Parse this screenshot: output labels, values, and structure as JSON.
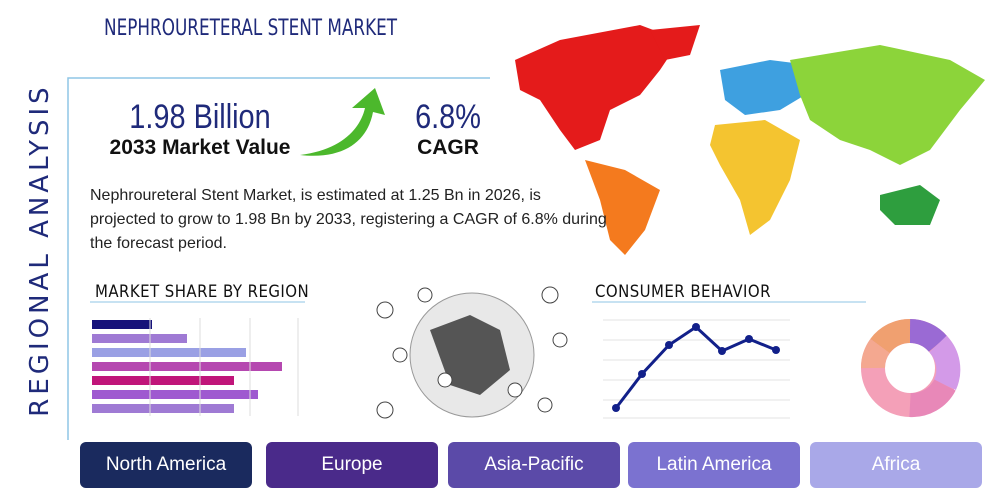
{
  "side_label": "REGIONAL ANALYSIS",
  "header": {
    "title": "NEPHROURETERAL STENT MARKET"
  },
  "stats": {
    "market_value": "1.98 Billion",
    "market_value_label": "2033 Market Value",
    "cagr": "6.8%",
    "cagr_label": "CAGR"
  },
  "description": "Nephroureteral Stent Market, is estimated at 1.25 Bn in 2026, is projected to grow to 1.98 Bn by 2033, registering a CAGR of 6.8% during the forecast period.",
  "sections": {
    "market_share": "MARKET SHARE BY REGION",
    "consumer_behavior": "CONSUMER BEHAVIOR"
  },
  "regions": [
    "North America",
    "Europe",
    "Asia-Pacific",
    "Latin America",
    "Africa"
  ]
}
